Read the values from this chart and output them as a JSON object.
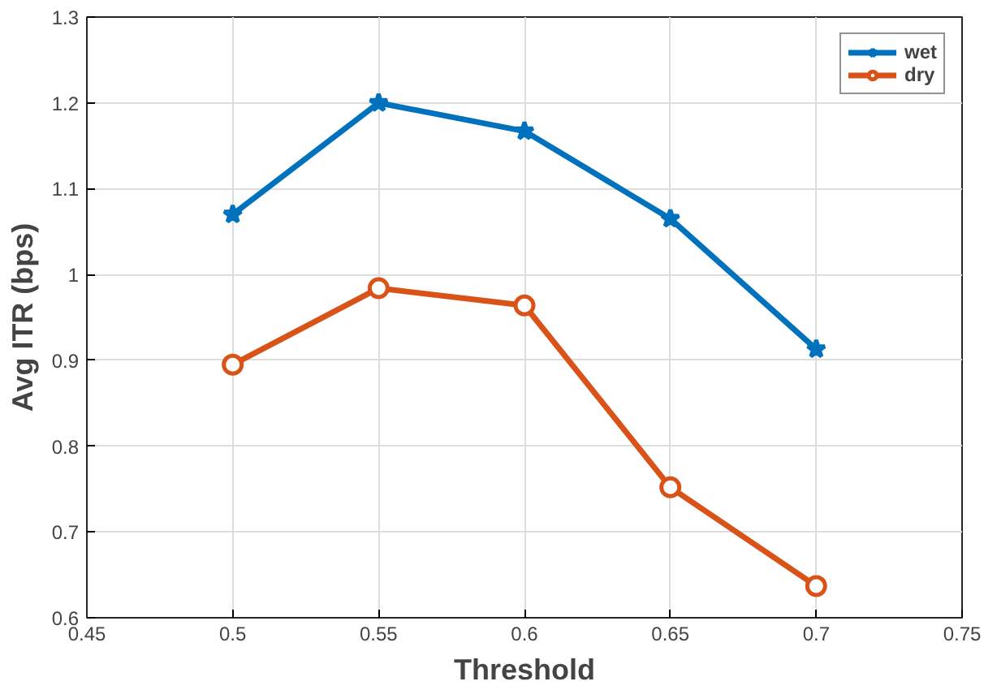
{
  "chart_data": {
    "type": "line",
    "xlabel": "Threshold",
    "ylabel": "Avg ITR (bps)",
    "x": [
      0.5,
      0.55,
      0.6,
      0.65,
      0.7
    ],
    "series": [
      {
        "name": "wet",
        "color": "#0072bd",
        "marker": "star",
        "values": [
          1.07,
          1.2,
          1.167,
          1.065,
          0.913
        ]
      },
      {
        "name": "dry",
        "color": "#d95319",
        "marker": "circle",
        "values": [
          0.895,
          0.984,
          0.964,
          0.752,
          0.637
        ]
      }
    ],
    "xlim": [
      0.45,
      0.75
    ],
    "xticks": [
      0.45,
      0.5,
      0.55,
      0.6,
      0.65,
      0.7,
      0.75
    ],
    "ylim": [
      0.6,
      1.3
    ],
    "yticks": [
      0.6,
      0.7,
      0.8,
      0.9,
      1,
      1.1,
      1.2,
      1.3
    ],
    "grid": true,
    "legend": "top right",
    "line_style": "solid"
  }
}
